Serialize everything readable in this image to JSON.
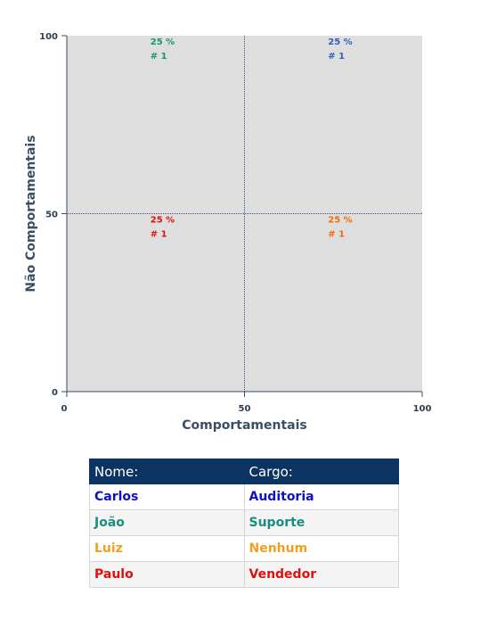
{
  "chart_data": {
    "type": "scatter",
    "xlabel": "Comportamentais",
    "ylabel": "Não Comportamentais",
    "xlim": [
      0,
      100
    ],
    "ylim": [
      0,
      100
    ],
    "x_ticks": [
      "0",
      "50",
      "100"
    ],
    "y_ticks": [
      "0",
      "50",
      "100"
    ],
    "dividers": {
      "x": 50,
      "y": 50
    },
    "quadrants": [
      {
        "x": 25,
        "y": 100,
        "percent": "25 %",
        "count": "# 1",
        "color": "#1a9660"
      },
      {
        "x": 75,
        "y": 100,
        "percent": "25 %",
        "count": "# 1",
        "color": "#2f5fc4"
      },
      {
        "x": 25,
        "y": 50,
        "percent": "25 %",
        "count": "# 1",
        "color": "#e01010"
      },
      {
        "x": 75,
        "y": 50,
        "percent": "25 %",
        "count": "# 1",
        "color": "#f06a10"
      }
    ],
    "plot_background": "#dedede",
    "axis_color": "#3a4f66"
  },
  "table": {
    "headers": [
      "Nome:",
      "Cargo:"
    ],
    "rows": [
      {
        "name": "Carlos",
        "role": "Auditoria",
        "color": "#1010c8"
      },
      {
        "name": "João",
        "role": "Suporte",
        "color": "#1a8c80"
      },
      {
        "name": "Luiz",
        "role": "Nenhum",
        "color": "#f0a020"
      },
      {
        "name": "Paulo",
        "role": "Vendedor",
        "color": "#e01010"
      }
    ]
  }
}
